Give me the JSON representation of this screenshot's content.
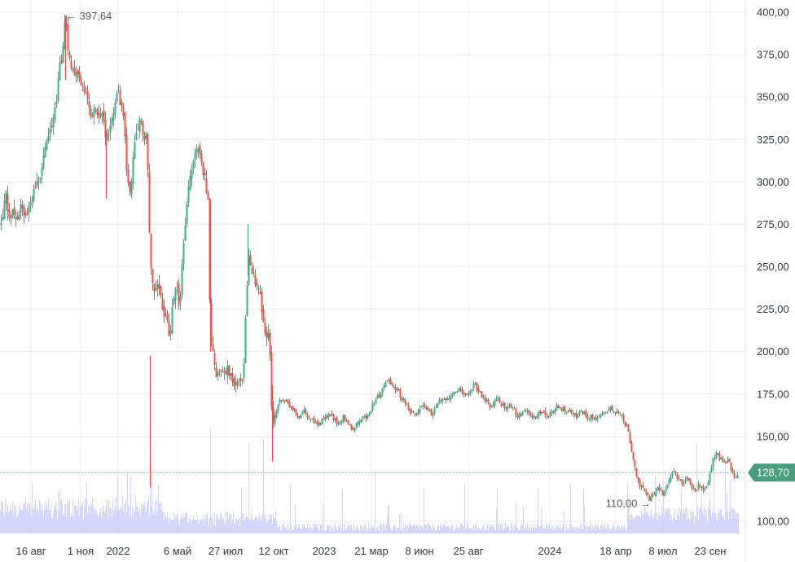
{
  "chart_data": {
    "type": "candlestick",
    "colors": {
      "up": "#3fae86",
      "down": "#e2544f",
      "volume": "#c9cdfa",
      "grid": "#ececef",
      "last_price": "#4a9e7e",
      "baseline": "#7fbfa7"
    },
    "y_axis": {
      "min": 97,
      "max": 402,
      "ticks": [
        "400,00",
        "375,00",
        "350,00",
        "325,00",
        "300,00",
        "275,00",
        "250,00",
        "225,00",
        "200,00",
        "175,00",
        "150,00",
        "100,00"
      ],
      "tick_values": [
        400,
        375,
        350,
        325,
        300,
        275,
        250,
        225,
        200,
        175,
        150,
        100
      ]
    },
    "x_axis": {
      "labels": [
        "16 авг",
        "1 ноя",
        "2022",
        "6 май",
        "27 июл",
        "12 окт",
        "2023",
        "21 мар",
        "8 июн",
        "25 авг",
        "2024",
        "18 апр",
        "8 июл",
        "23 сен"
      ]
    },
    "last_price": {
      "label": "128,70",
      "value": 128.7
    },
    "annotations": {
      "max": {
        "label": "← 397,64",
        "value": 397.64
      },
      "min": {
        "label": "110,00 →",
        "value": 110.0
      }
    },
    "price_path": [
      [
        0,
        276
      ],
      [
        3,
        280
      ],
      [
        6,
        295
      ],
      [
        9,
        285
      ],
      [
        12,
        280
      ],
      [
        16,
        283
      ],
      [
        20,
        275
      ],
      [
        24,
        286
      ],
      [
        28,
        282
      ],
      [
        32,
        282
      ],
      [
        36,
        290
      ],
      [
        40,
        292
      ],
      [
        44,
        300
      ],
      [
        48,
        302
      ],
      [
        52,
        310
      ],
      [
        56,
        320
      ],
      [
        60,
        328
      ],
      [
        64,
        333
      ],
      [
        68,
        345
      ],
      [
        72,
        365
      ],
      [
        76,
        375
      ],
      [
        80,
        397.64
      ],
      [
        84,
        372
      ],
      [
        88,
        368
      ],
      [
        92,
        365
      ],
      [
        96,
        360
      ],
      [
        100,
        356
      ],
      [
        104,
        352
      ],
      [
        108,
        345
      ],
      [
        112,
        340
      ],
      [
        116,
        342
      ],
      [
        120,
        335
      ],
      [
        124,
        345
      ],
      [
        128,
        330
      ],
      [
        132,
        325
      ],
      [
        136,
        338
      ],
      [
        140,
        345
      ],
      [
        144,
        355
      ],
      [
        148,
        343
      ],
      [
        152,
        338
      ],
      [
        156,
        300
      ],
      [
        160,
        290
      ],
      [
        164,
        320
      ],
      [
        168,
        330
      ],
      [
        172,
        338
      ],
      [
        176,
        325
      ],
      [
        180,
        330
      ],
      [
        184,
        250
      ],
      [
        187,
        240
      ],
      [
        190,
        230
      ],
      [
        194,
        245
      ],
      [
        197,
        230
      ],
      [
        200,
        222
      ],
      [
        204,
        218
      ],
      [
        208,
        210
      ],
      [
        212,
        228
      ],
      [
        216,
        240
      ],
      [
        220,
        225
      ],
      [
        224,
        262
      ],
      [
        228,
        280
      ],
      [
        232,
        300
      ],
      [
        236,
        310
      ],
      [
        240,
        318
      ],
      [
        244,
        320
      ],
      [
        248,
        308
      ],
      [
        252,
        300
      ],
      [
        255,
        290
      ],
      [
        258,
        205
      ],
      [
        262,
        195
      ],
      [
        266,
        185
      ],
      [
        270,
        192
      ],
      [
        274,
        188
      ],
      [
        278,
        190
      ],
      [
        282,
        187
      ],
      [
        286,
        178
      ],
      [
        290,
        180
      ],
      [
        294,
        185
      ],
      [
        298,
        183
      ],
      [
        302,
        230
      ],
      [
        305,
        258
      ],
      [
        310,
        245
      ],
      [
        314,
        240
      ],
      [
        318,
        238
      ],
      [
        322,
        220
      ],
      [
        326,
        208
      ],
      [
        330,
        210
      ],
      [
        334,
        155
      ],
      [
        338,
        165
      ],
      [
        342,
        170
      ],
      [
        346,
        172
      ],
      [
        350,
        170
      ],
      [
        354,
        168
      ],
      [
        358,
        168
      ],
      [
        362,
        165
      ],
      [
        366,
        160
      ],
      [
        370,
        165
      ],
      [
        374,
        165
      ],
      [
        378,
        162
      ],
      [
        382,
        160
      ],
      [
        386,
        158
      ],
      [
        390,
        157
      ],
      [
        394,
        160
      ],
      [
        398,
        160
      ],
      [
        402,
        162
      ],
      [
        406,
        163
      ],
      [
        410,
        160
      ],
      [
        414,
        158
      ],
      [
        418,
        160
      ],
      [
        422,
        162
      ],
      [
        426,
        158
      ],
      [
        430,
        155
      ],
      [
        434,
        155
      ],
      [
        438,
        158
      ],
      [
        442,
        160
      ],
      [
        446,
        162
      ],
      [
        450,
        160
      ],
      [
        454,
        165
      ],
      [
        458,
        170
      ],
      [
        462,
        172
      ],
      [
        466,
        175
      ],
      [
        470,
        180
      ],
      [
        474,
        182
      ],
      [
        478,
        183
      ],
      [
        482,
        180
      ],
      [
        486,
        178
      ],
      [
        490,
        175
      ],
      [
        494,
        172
      ],
      [
        498,
        170
      ],
      [
        502,
        165
      ],
      [
        506,
        163
      ],
      [
        510,
        162
      ],
      [
        514,
        165
      ],
      [
        518,
        170
      ],
      [
        522,
        168
      ],
      [
        526,
        165
      ],
      [
        530,
        163
      ],
      [
        534,
        166
      ],
      [
        538,
        170
      ],
      [
        542,
        172
      ],
      [
        546,
        170
      ],
      [
        550,
        173
      ],
      [
        554,
        175
      ],
      [
        558,
        177
      ],
      [
        562,
        178
      ],
      [
        566,
        175
      ],
      [
        570,
        173
      ],
      [
        574,
        175
      ],
      [
        578,
        178
      ],
      [
        582,
        182
      ],
      [
        586,
        178
      ],
      [
        590,
        175
      ],
      [
        594,
        172
      ],
      [
        598,
        170
      ],
      [
        602,
        167
      ],
      [
        606,
        170
      ],
      [
        610,
        172
      ],
      [
        614,
        170
      ],
      [
        618,
        168
      ],
      [
        622,
        167
      ],
      [
        626,
        168
      ],
      [
        630,
        166
      ],
      [
        634,
        163
      ],
      [
        638,
        162
      ],
      [
        642,
        163
      ],
      [
        646,
        166
      ],
      [
        650,
        162
      ],
      [
        654,
        160
      ],
      [
        658,
        163
      ],
      [
        662,
        165
      ],
      [
        666,
        164
      ],
      [
        670,
        162
      ],
      [
        674,
        163
      ],
      [
        678,
        165
      ],
      [
        682,
        167
      ],
      [
        686,
        168
      ],
      [
        690,
        166
      ],
      [
        694,
        165
      ],
      [
        698,
        166
      ],
      [
        702,
        164
      ],
      [
        706,
        162
      ],
      [
        710,
        163
      ],
      [
        714,
        165
      ],
      [
        718,
        163
      ],
      [
        722,
        160
      ],
      [
        726,
        162
      ],
      [
        730,
        162
      ],
      [
        734,
        160
      ],
      [
        738,
        163
      ],
      [
        742,
        165
      ],
      [
        746,
        166
      ],
      [
        750,
        167
      ],
      [
        754,
        165
      ],
      [
        758,
        165
      ],
      [
        762,
        162
      ],
      [
        766,
        158
      ],
      [
        770,
        155
      ],
      [
        774,
        145
      ],
      [
        778,
        135
      ],
      [
        782,
        125
      ],
      [
        786,
        120
      ],
      [
        790,
        118
      ],
      [
        794,
        115
      ],
      [
        798,
        113
      ],
      [
        802,
        116
      ],
      [
        806,
        120
      ],
      [
        810,
        118
      ],
      [
        814,
        116
      ],
      [
        818,
        120
      ],
      [
        822,
        125
      ],
      [
        826,
        130
      ],
      [
        830,
        127
      ],
      [
        834,
        124
      ],
      [
        838,
        122
      ],
      [
        842,
        125
      ],
      [
        846,
        124
      ],
      [
        850,
        120
      ],
      [
        854,
        118
      ],
      [
        858,
        122
      ],
      [
        862,
        120
      ],
      [
        866,
        118
      ],
      [
        870,
        125
      ],
      [
        874,
        135
      ],
      [
        878,
        140
      ],
      [
        882,
        138
      ],
      [
        886,
        136
      ],
      [
        890,
        135
      ],
      [
        894,
        136
      ],
      [
        898,
        130
      ],
      [
        902,
        126
      ],
      [
        906,
        128.7
      ]
    ]
  }
}
